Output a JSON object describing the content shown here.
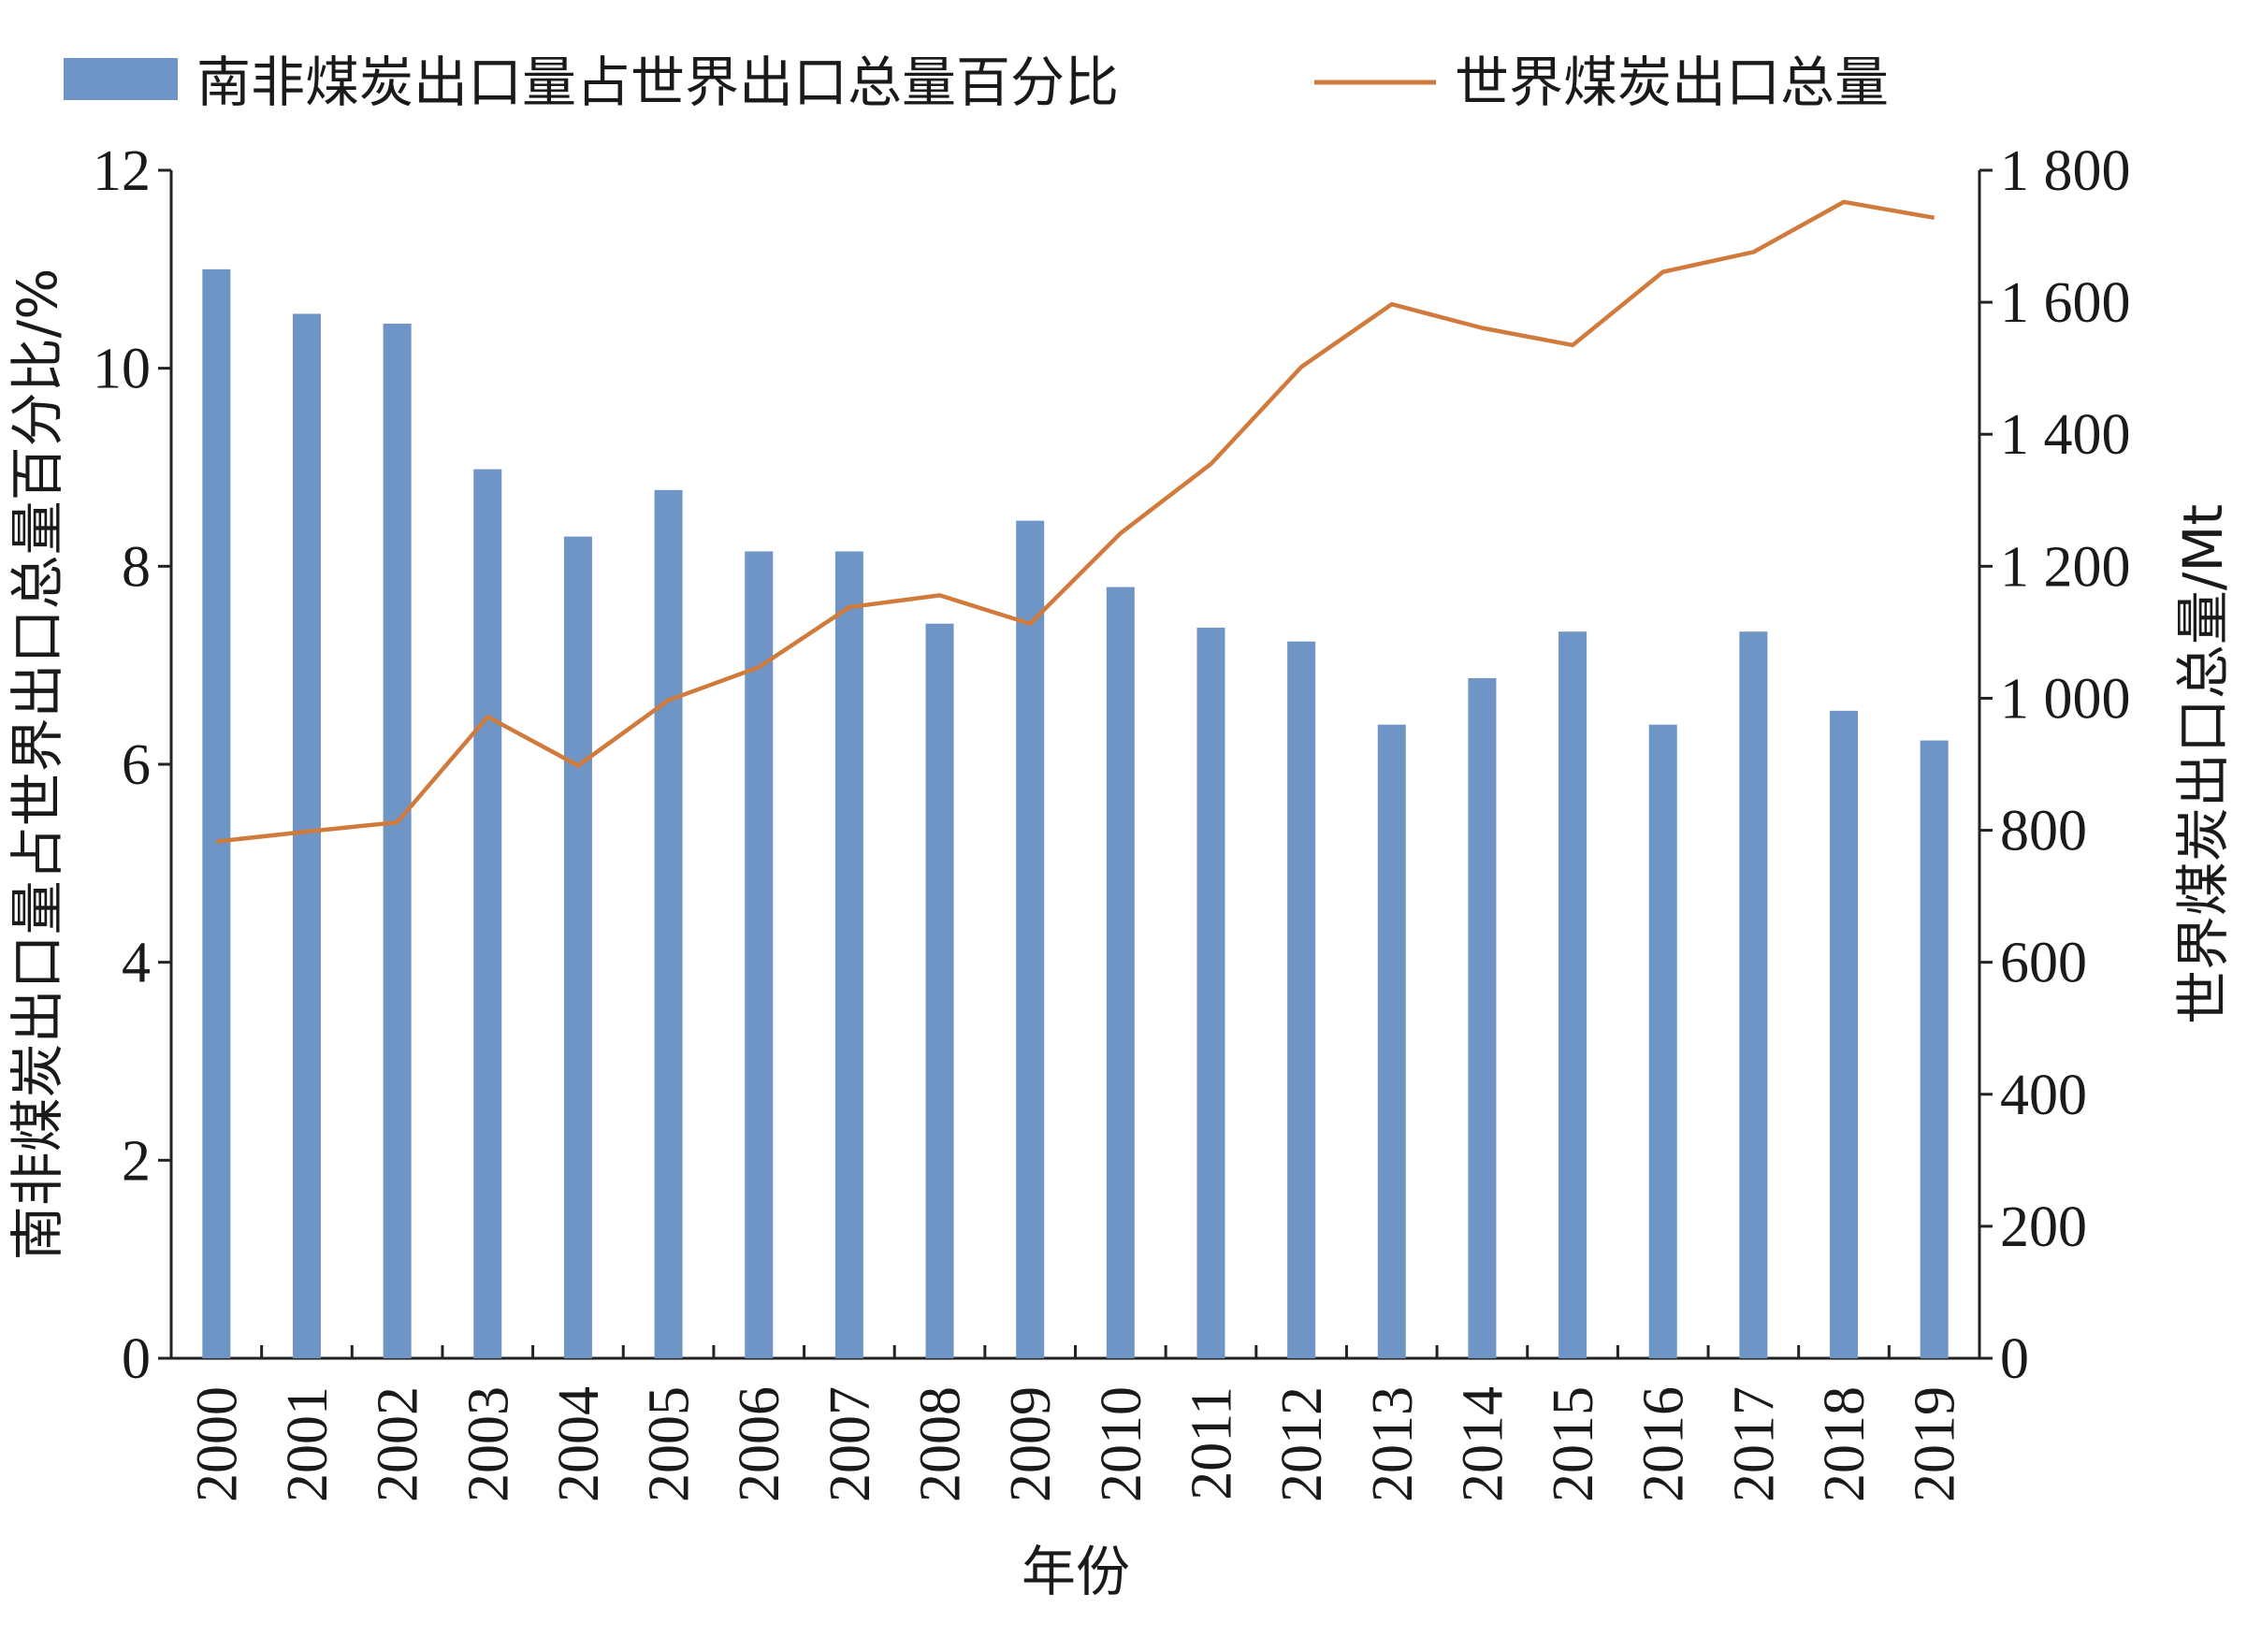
{
  "chart_data": {
    "type": "bar+line",
    "categories": [
      "2000",
      "2001",
      "2002",
      "2003",
      "2004",
      "2005",
      "2006",
      "2007",
      "2008",
      "2009",
      "2010",
      "2011",
      "2012",
      "2013",
      "2014",
      "2015",
      "2016",
      "2017",
      "2018",
      "2019"
    ],
    "series": [
      {
        "name": "南非煤炭出口量占世界出口总量百分比",
        "type": "bar",
        "axis": "left",
        "color": "#6f95c6",
        "values": [
          11.0,
          10.55,
          10.45,
          8.98,
          8.3,
          8.77,
          8.15,
          8.15,
          7.42,
          8.46,
          7.79,
          7.38,
          7.24,
          6.4,
          6.87,
          7.34,
          6.4,
          7.34,
          6.54,
          6.24
        ]
      },
      {
        "name": "世界煤炭出口总量",
        "type": "line",
        "axis": "right",
        "color": "#d07a3c",
        "values": [
          783,
          798,
          812,
          972,
          898,
          997,
          1047,
          1138,
          1156,
          1113,
          1250,
          1355,
          1502,
          1597,
          1561,
          1535,
          1646,
          1676,
          1752,
          1728
        ]
      }
    ],
    "xlabel": "年份",
    "ylabel_left": "南非煤炭出口量占世界出口总量百分比/%",
    "ylabel_right": "世界煤炭出口总量/Mt",
    "ylim_left": [
      0,
      12
    ],
    "ylim_right": [
      0,
      1800
    ],
    "yticks_left": [
      "0",
      "2",
      "4",
      "6",
      "8",
      "10",
      "12"
    ],
    "yticks_right": [
      "0",
      "200",
      "400",
      "600",
      "800",
      "1 000",
      "1 200",
      "1 400",
      "1 600",
      "1 800"
    ],
    "grid": false,
    "legend_position": "top"
  }
}
